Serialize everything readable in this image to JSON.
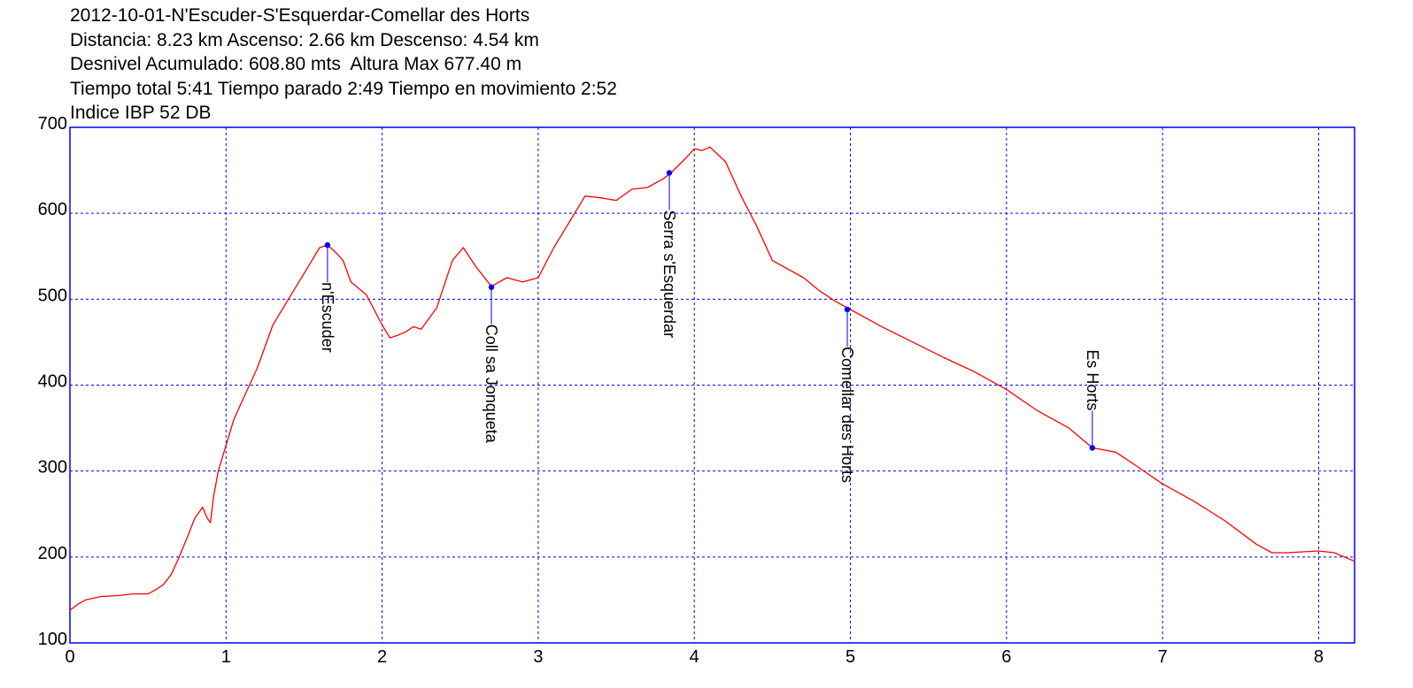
{
  "header": {
    "lines": [
      "2012-10-01-N'Escuder-S'Esquerdar-Comellar des Horts",
      "Distancia: 8.23 km Ascenso: 2.66 km Descenso: 4.54 km",
      "Desnivel Acumulado: 608.80 mts  Altura Max 677.40 m",
      "Tiempo total 5:41 Tiempo parado 2:49 Tiempo en movimiento 2:52",
      "Indice IBP 52 DB"
    ]
  },
  "chart_data": {
    "type": "line",
    "title": "2012-10-01-N'Escuder-S'Esquerdar-Comellar des Horts",
    "xlabel": "",
    "ylabel": "",
    "xlim": [
      0,
      8.23
    ],
    "ylim": [
      100,
      700
    ],
    "xticks": [
      "0",
      "1",
      "2",
      "3",
      "4",
      "5",
      "6",
      "7",
      "8"
    ],
    "yticks": [
      "100",
      "200",
      "300",
      "400",
      "500",
      "600",
      "700"
    ],
    "grid": true,
    "colors": {
      "line": "#ff0000",
      "frame": "#0000ff",
      "grid": "#0000ff",
      "waypoint": "#0000ff",
      "label": "#000000"
    },
    "series": [
      {
        "x": [
          0,
          0.05,
          0.1,
          0.2,
          0.3,
          0.4,
          0.5,
          0.55,
          0.6,
          0.65,
          0.7,
          0.75,
          0.8,
          0.85,
          0.88,
          0.9,
          0.92,
          0.95,
          1.0,
          1.05,
          1.1,
          1.2,
          1.3,
          1.4,
          1.5,
          1.6,
          1.65,
          1.7,
          1.75,
          1.8,
          1.9,
          2.0,
          2.05,
          2.1,
          2.15,
          2.2,
          2.25,
          2.35,
          2.45,
          2.52,
          2.6,
          2.7,
          2.8,
          2.9,
          3.0,
          3.1,
          3.2,
          3.3,
          3.4,
          3.5,
          3.6,
          3.7,
          3.8,
          3.85,
          3.95,
          4.0,
          4.05,
          4.1,
          4.2,
          4.3,
          4.4,
          4.5,
          4.6,
          4.7,
          4.8,
          4.9,
          5.0,
          5.1,
          5.2,
          5.4,
          5.6,
          5.8,
          6.0,
          6.2,
          6.4,
          6.55,
          6.7,
          6.8,
          7.0,
          7.2,
          7.4,
          7.6,
          7.7,
          7.8,
          8.0,
          8.1,
          8.23
        ],
        "y": [
          138,
          145,
          150,
          154,
          155,
          157,
          157,
          162,
          168,
          180,
          200,
          222,
          245,
          258,
          245,
          240,
          270,
          300,
          330,
          360,
          380,
          420,
          470,
          500,
          530,
          560,
          563,
          555,
          545,
          520,
          505,
          470,
          455,
          458,
          462,
          468,
          465,
          490,
          545,
          560,
          538,
          515,
          525,
          520,
          525,
          560,
          590,
          620,
          618,
          615,
          628,
          630,
          640,
          647,
          665,
          675,
          673,
          677,
          660,
          620,
          585,
          545,
          535,
          525,
          510,
          498,
          488,
          478,
          468,
          450,
          432,
          415,
          395,
          370,
          350,
          327,
          322,
          310,
          285,
          265,
          242,
          215,
          205,
          205,
          207,
          205,
          195
        ]
      }
    ],
    "waypoints": [
      {
        "name": "n'Escuder",
        "x": 1.65,
        "y": 563,
        "label_side": "below"
      },
      {
        "name": "Coll sa Jonqueta",
        "x": 2.7,
        "y": 514,
        "label_side": "below"
      },
      {
        "name": "Serra s'Esquerdar",
        "x": 3.84,
        "y": 647,
        "label_side": "below"
      },
      {
        "name": "Comellar des Horts",
        "x": 4.98,
        "y": 488,
        "label_side": "below"
      },
      {
        "name": "Es Horts",
        "x": 6.55,
        "y": 327,
        "label_side": "above"
      }
    ]
  }
}
